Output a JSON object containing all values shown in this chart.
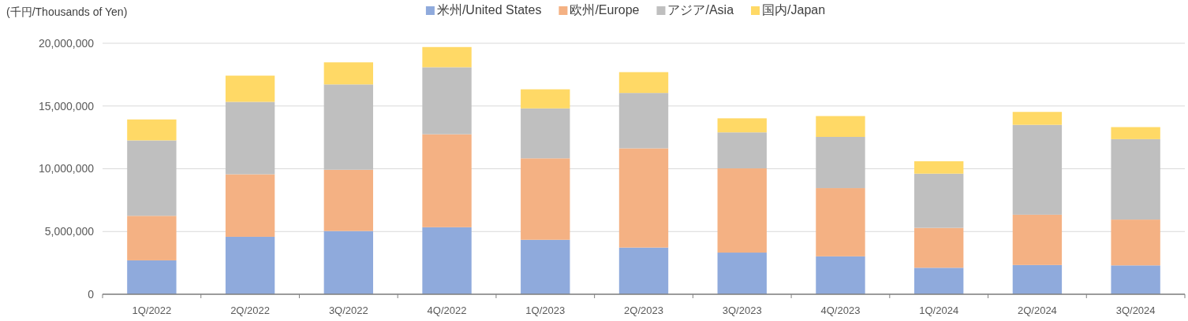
{
  "chart_data": {
    "type": "bar",
    "stacked": true,
    "ylabel": "(千円/Thousands of Yen)",
    "categories": [
      "1Q/2022",
      "2Q/2022",
      "3Q/2022",
      "4Q/2022",
      "1Q/2023",
      "2Q/2023",
      "3Q/2023",
      "4Q/2023",
      "1Q/2024",
      "2Q/2024",
      "3Q/2024"
    ],
    "series": [
      {
        "name": "米州/United States",
        "color": "#8faadc",
        "values": [
          2700000,
          4580000,
          5040000,
          5340000,
          4340000,
          3720000,
          3320000,
          3020000,
          2110000,
          2330000,
          2300000
        ]
      },
      {
        "name": "欧州/Europe",
        "color": "#f4b183",
        "values": [
          3550000,
          4980000,
          4880000,
          7410000,
          6490000,
          7910000,
          6710000,
          5440000,
          3180000,
          4010000,
          3650000
        ]
      },
      {
        "name": "アジア/Asia",
        "color": "#bfbfbf",
        "values": [
          6010000,
          5770000,
          6800000,
          5340000,
          3980000,
          4410000,
          2870000,
          4080000,
          4320000,
          7160000,
          6410000
        ]
      },
      {
        "name": "国内/Japan",
        "color": "#ffd966",
        "values": [
          1670000,
          2090000,
          1760000,
          1610000,
          1520000,
          1660000,
          1120000,
          1660000,
          990000,
          1030000,
          960000
        ]
      }
    ],
    "ylim": [
      0,
      20000000
    ],
    "yticks": [
      {
        "value": 0,
        "label": "0"
      },
      {
        "value": 5000000,
        "label": "5,000,000"
      },
      {
        "value": 10000000,
        "label": "10,000,000"
      },
      {
        "value": 15000000,
        "label": "15,000,000"
      },
      {
        "value": 20000000,
        "label": "20,000,000"
      }
    ],
    "grid": "y",
    "legend": "top"
  }
}
